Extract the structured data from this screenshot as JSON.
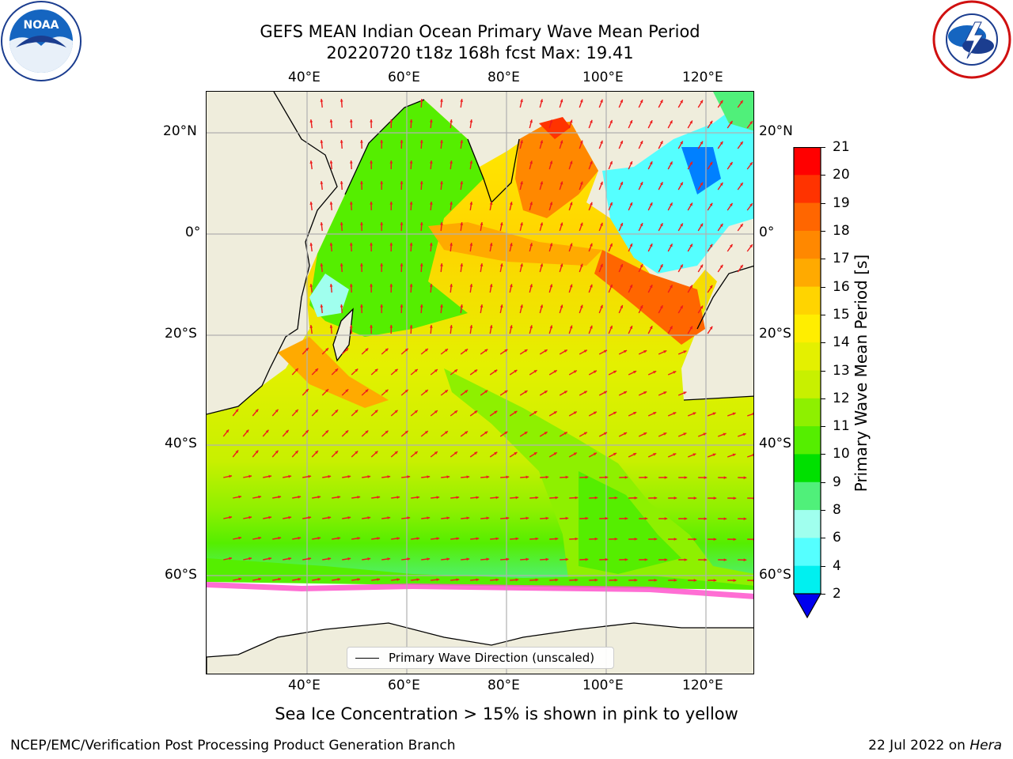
{
  "header": {
    "title_line1": "GEFS MEAN Indian Ocean Primary Wave Mean Period",
    "title_line2": "20220720 t18z 168h fcst   Max: 19.41"
  },
  "logos": {
    "noaa_text": "NOAA",
    "noaa_ring": "NATIONAL OCEANIC AND ATMOSPHERIC ADMINISTRATION · U.S. DEPARTMENT OF COMMERCE",
    "nws_ring": "NATIONAL WEATHER SERVICE"
  },
  "map": {
    "lon_labels": [
      "40°E",
      "60°E",
      "80°E",
      "100°E",
      "120°E"
    ],
    "lat_labels_left": [
      "20°N",
      "0°",
      "20°S",
      "40°S",
      "60°S"
    ],
    "lat_labels_right": [
      "20°N",
      "0°",
      "20°S",
      "40°S",
      "60°S"
    ],
    "legend_label": "Primary Wave Direction (unscaled)",
    "colors": {
      "land": "#efeddc",
      "arrow": "#ee1c1c",
      "grid": "#b0b0b0"
    }
  },
  "colorbar": {
    "label": "Primary Wave Mean Period [s]",
    "ticks": [
      "21",
      "20",
      "19",
      "18",
      "17",
      "16",
      "15",
      "14",
      "13",
      "12",
      "11",
      "10",
      "9",
      "8",
      "6",
      "4",
      "2"
    ],
    "colors": [
      "#ff0000",
      "#ff3300",
      "#ff6600",
      "#ff8800",
      "#ffaa00",
      "#ffd400",
      "#ffee00",
      "#e4f000",
      "#c8f000",
      "#8ef000",
      "#55ee00",
      "#00e000",
      "#50f07a",
      "#a0ffee",
      "#55ffff",
      "#00f0f0",
      "#0080ff"
    ],
    "under_color": "#0000ee"
  },
  "caption": "Sea Ice Concentration > 15% is shown in pink to yellow",
  "footer": {
    "left": "NCEP/EMC/Verification Post Processing Product Generation Branch",
    "right_date": "22 Jul 2022 on ",
    "right_host": "Hera"
  }
}
